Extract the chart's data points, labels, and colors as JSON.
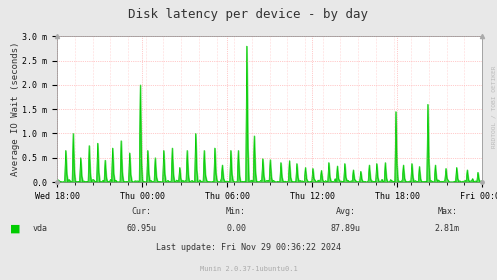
{
  "title": "Disk latency per device - by day",
  "ylabel": "Average IO Wait (seconds)",
  "background_color": "#e8e8e8",
  "plot_bg_color": "#ffffff",
  "line_color": "#00cc00",
  "grid_color_minor": "#ff9999",
  "ytick_labels": [
    "0.0",
    "0.5 m",
    "1.0 m",
    "1.5 m",
    "2.0 m",
    "2.5 m",
    "3.0 m"
  ],
  "ytick_values": [
    0.0,
    0.0005,
    0.001,
    0.0015,
    0.002,
    0.0025,
    0.003
  ],
  "ylim": [
    0.0,
    0.003
  ],
  "xtick_labels": [
    "Wed 18:00",
    "Thu 00:00",
    "Thu 06:00",
    "Thu 12:00",
    "Thu 18:00",
    "Fri 00:00"
  ],
  "legend_label": "vda",
  "legend_color": "#00cc00",
  "cur_label": "Cur:",
  "cur_value": "60.95u",
  "min_label": "Min:",
  "min_value": "0.00",
  "avg_label": "Avg:",
  "avg_value": "87.89u",
  "max_label": "Max:",
  "max_value": "2.81m",
  "last_update": "Last update: Fri Nov 29 00:36:22 2024",
  "munin_label": "Munin 2.0.37-1ubuntu0.1",
  "rrdtool_label": "RRDTOOL / TOBI OETIKER",
  "title_fontsize": 9,
  "axis_label_fontsize": 6.5,
  "tick_fontsize": 6,
  "footer_fontsize": 6
}
